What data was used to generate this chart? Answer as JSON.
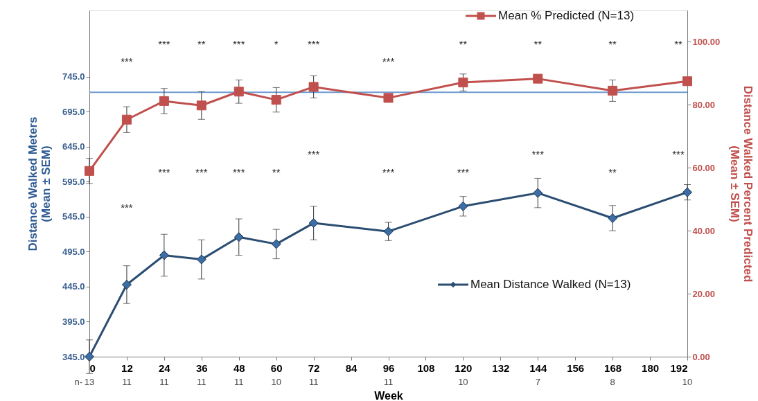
{
  "chart_data": {
    "type": "line",
    "xlabel": "Week",
    "ylabel": "Distance Walked Meters\n(Mean ± SEM)",
    "y2label": "Distance Walked Percent Predicted\n(Mean ± SEM)",
    "x": [
      0,
      12,
      24,
      36,
      48,
      60,
      72,
      96,
      120,
      144,
      168,
      192
    ],
    "xlim": [
      0,
      192
    ],
    "xticks": [
      0,
      12,
      24,
      36,
      48,
      60,
      72,
      84,
      96,
      108,
      120,
      132,
      144,
      156,
      168,
      180,
      192
    ],
    "ylim": [
      345,
      840
    ],
    "yticks": [
      {
        "value": 345,
        "label": "345.0"
      },
      {
        "value": 395,
        "label": "395.0"
      },
      {
        "value": 445,
        "label": "445.0"
      },
      {
        "value": 495,
        "label": "495.0"
      },
      {
        "value": 545,
        "label": "545.0"
      },
      {
        "value": 595,
        "label": "595.0"
      },
      {
        "value": 645,
        "label": "645.0"
      },
      {
        "value": 695,
        "label": "695.0"
      },
      {
        "value": 745,
        "label": "745.0"
      }
    ],
    "y2lim": [
      0,
      110
    ],
    "y2ticks": [
      {
        "value": 0,
        "label": "0.00"
      },
      {
        "value": 20,
        "label": "20.00"
      },
      {
        "value": 40,
        "label": "40.00"
      },
      {
        "value": 60,
        "label": "60.00"
      },
      {
        "value": 80,
        "label": "80.00"
      },
      {
        "value": 100,
        "label": "100.00"
      }
    ],
    "series": [
      {
        "name": "Mean Distance Walked (N=13)",
        "color": "#2b4d72",
        "marker": "diamond",
        "values": [
          345,
          448,
          490,
          484,
          516,
          506,
          536,
          524,
          560,
          579,
          543,
          580
        ],
        "errors": [
          24,
          27,
          30,
          28,
          26,
          21,
          24,
          13,
          14,
          21,
          18,
          11
        ]
      },
      {
        "name": "Mean % Predicted (N=13)",
        "color": "#c0504d",
        "marker": "square",
        "axis": "y2",
        "values": [
          59,
          75.3,
          81.2,
          79.8,
          84.2,
          81.6,
          85.7,
          82.2,
          87.1,
          88.3,
          84.5,
          87.5
        ],
        "errors": [
          4,
          4.1,
          4,
          4.4,
          3.7,
          3.9,
          3.5,
          null,
          2.7,
          null,
          3.4,
          null
        ]
      }
    ],
    "ref_lines": [
      {
        "axis": "y",
        "value": 723,
        "color": "#6f9bd1"
      }
    ],
    "legend": "right",
    "grid": false,
    "line_style": "solid",
    "annotations": [
      "***",
      "***",
      "**",
      "***",
      "*",
      "***",
      "***",
      "**",
      "**",
      "**",
      "**",
      "***",
      "***",
      "***",
      "***",
      "**",
      "***",
      "***",
      "***",
      "***",
      "**",
      "***",
      "n-",
      "13",
      "11",
      "11",
      "11",
      "11",
      "10",
      "11",
      "11",
      "10",
      "7",
      "8",
      "10"
    ]
  }
}
